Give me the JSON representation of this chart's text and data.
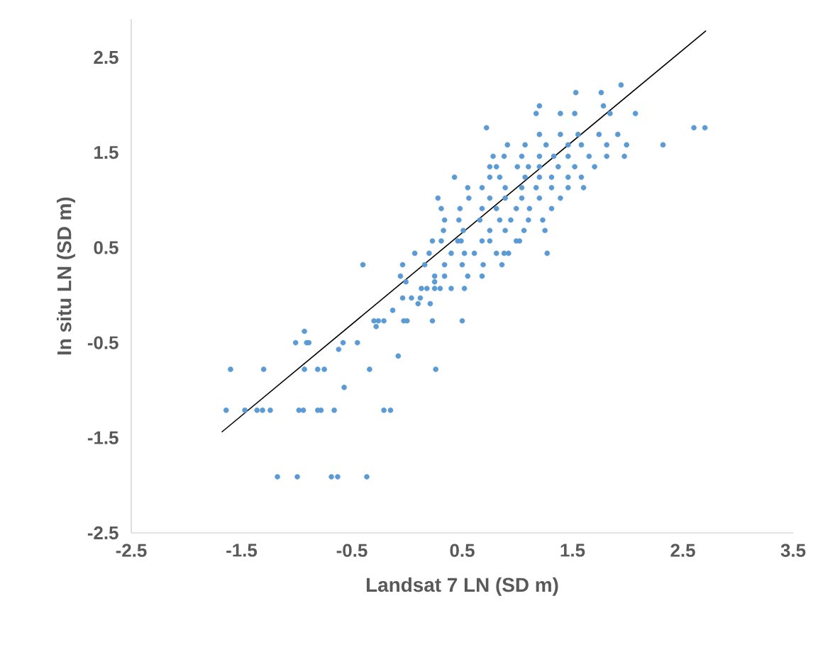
{
  "chart_data": {
    "type": "scatter",
    "xlabel": "Landsat 7 LN (SD m)",
    "ylabel": "In situ LN (SD m)",
    "xlim": [
      -2.5,
      3.5
    ],
    "ylim": [
      -2.5,
      2.9
    ],
    "xticks": [
      -2.5,
      -1.5,
      -0.5,
      0.5,
      1.5,
      2.5,
      3.5
    ],
    "yticks": [
      -2.5,
      -1.5,
      -0.5,
      0.5,
      1.5,
      2.5
    ],
    "series": [
      {
        "type": "scatter",
        "color": "#5b9bd5",
        "marker": "circle",
        "x": [
          -1.175,
          -0.995,
          -0.686,
          -0.629,
          -0.365,
          -1.64,
          -1.47,
          -1.36,
          -1.31,
          -1.24,
          -0.98,
          -0.94,
          -0.81,
          -0.78,
          -0.66,
          -0.21,
          -0.15,
          -1.6,
          -1.3,
          -0.93,
          -0.81,
          -0.75,
          -0.34,
          0.26,
          -0.57,
          -1.01,
          -0.91,
          -0.89,
          -0.45,
          -0.93,
          -0.62,
          -0.58,
          -0.08,
          -0.3,
          -0.26,
          -0.21,
          -0.03,
          0.0,
          -0.28,
          -0.4,
          -0.13,
          0.23,
          0.5,
          -0.04,
          0.04,
          0.12,
          0.1,
          0.21,
          0.13,
          0.18,
          0.25,
          0.3,
          0.4,
          0.52,
          -0.01,
          0.25,
          -0.06,
          0.25,
          0.34,
          0.55,
          0.68,
          -0.04,
          0.16,
          0.34,
          0.5,
          0.69,
          0.86,
          0.07,
          0.2,
          0.4,
          0.52,
          0.61,
          0.81,
          0.88,
          0.92,
          1.27,
          0.23,
          0.31,
          0.46,
          0.49,
          0.68,
          0.75,
          0.99,
          1.02,
          0.33,
          0.51,
          0.75,
          0.89,
          1.06,
          1.25,
          0.34,
          0.47,
          0.66,
          0.84,
          0.94,
          1.1,
          1.23,
          0.31,
          0.48,
          0.68,
          0.81,
          0.99,
          1.11,
          1.31,
          0.28,
          0.56,
          0.75,
          0.89,
          1.04,
          1.2,
          1.39,
          0.55,
          0.68,
          0.89,
          1.04,
          1.17,
          1.31,
          1.46,
          1.6,
          0.43,
          0.75,
          0.84,
          1.07,
          1.2,
          1.31,
          1.46,
          1.58,
          0.75,
          0.81,
          1.0,
          1.1,
          1.2,
          1.37,
          1.52,
          1.7,
          0.78,
          0.88,
          1.04,
          1.2,
          1.33,
          1.46,
          1.65,
          1.81,
          1.97,
          0.91,
          1.07,
          1.26,
          1.46,
          1.58,
          1.81,
          1.99,
          2.32,
          1.2,
          1.39,
          1.55,
          1.74,
          1.91,
          0.72,
          2.6,
          2.7,
          1.17,
          1.39,
          1.52,
          1.84,
          2.07,
          1.2,
          1.78,
          1.53,
          1.76,
          1.94
        ],
        "values": [
          -1.91,
          -1.91,
          -1.91,
          -1.91,
          -1.91,
          -1.21,
          -1.21,
          -1.21,
          -1.21,
          -1.21,
          -1.21,
          -1.21,
          -1.21,
          -1.21,
          -1.21,
          -1.21,
          -1.21,
          -0.78,
          -0.78,
          -0.78,
          -0.78,
          -0.78,
          -0.78,
          -0.78,
          -0.97,
          -0.5,
          -0.5,
          -0.5,
          -0.5,
          -0.38,
          -0.57,
          -0.5,
          -0.64,
          -0.27,
          -0.27,
          -0.27,
          -0.27,
          -0.27,
          -0.33,
          0.32,
          -0.16,
          -0.27,
          -0.27,
          -0.03,
          -0.03,
          -0.03,
          -0.09,
          -0.09,
          0.07,
          0.07,
          0.07,
          0.07,
          0.07,
          0.07,
          0.14,
          0.14,
          0.2,
          0.2,
          0.2,
          0.2,
          0.2,
          0.32,
          0.32,
          0.32,
          0.32,
          0.32,
          0.32,
          0.44,
          0.44,
          0.44,
          0.44,
          0.44,
          0.44,
          0.44,
          0.44,
          0.44,
          0.57,
          0.57,
          0.57,
          0.57,
          0.57,
          0.57,
          0.57,
          0.57,
          0.68,
          0.68,
          0.68,
          0.68,
          0.68,
          0.68,
          0.79,
          0.79,
          0.79,
          0.79,
          0.79,
          0.79,
          0.79,
          0.91,
          0.91,
          0.91,
          0.91,
          0.91,
          0.91,
          0.91,
          1.02,
          1.02,
          1.02,
          1.02,
          1.02,
          1.02,
          1.02,
          1.13,
          1.13,
          1.13,
          1.13,
          1.13,
          1.13,
          1.13,
          1.13,
          1.24,
          1.24,
          1.24,
          1.24,
          1.24,
          1.24,
          1.24,
          1.24,
          1.35,
          1.35,
          1.35,
          1.35,
          1.35,
          1.35,
          1.35,
          1.35,
          1.46,
          1.46,
          1.46,
          1.46,
          1.46,
          1.46,
          1.46,
          1.46,
          1.46,
          1.58,
          1.58,
          1.58,
          1.58,
          1.58,
          1.58,
          1.58,
          1.58,
          1.69,
          1.69,
          1.69,
          1.69,
          1.69,
          1.76,
          1.76,
          1.76,
          1.91,
          1.91,
          1.91,
          1.91,
          1.91,
          1.99,
          1.99,
          2.13,
          2.13,
          2.21
        ]
      },
      {
        "type": "line",
        "color": "#000000",
        "marker": "none",
        "x": [
          -1.68,
          2.71
        ],
        "values": [
          -1.44,
          2.78
        ]
      }
    ]
  }
}
